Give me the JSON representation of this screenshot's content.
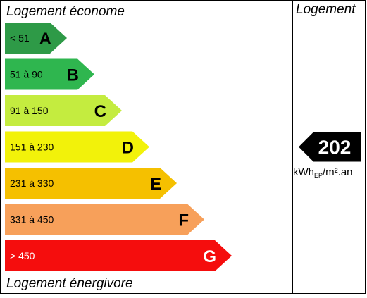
{
  "header": {
    "top_label": "Logement économe",
    "bottom_label": "Logement énergivore",
    "column_label": "Logement"
  },
  "classes": [
    {
      "letter": "A",
      "range": "< 51",
      "color": "#2e9a47",
      "range_color": "#000000",
      "letter_color": "#000000"
    },
    {
      "letter": "B",
      "range": "51 à 90",
      "color": "#2fb64f",
      "range_color": "#000000",
      "letter_color": "#000000"
    },
    {
      "letter": "C",
      "range": "91 à 150",
      "color": "#c4ec3f",
      "range_color": "#000000",
      "letter_color": "#000000"
    },
    {
      "letter": "D",
      "range": "151 à 230",
      "color": "#f2f20a",
      "range_color": "#000000",
      "letter_color": "#000000"
    },
    {
      "letter": "E",
      "range": "231 à 330",
      "color": "#f5c000",
      "range_color": "#000000",
      "letter_color": "#000000"
    },
    {
      "letter": "F",
      "range": "331 à 450",
      "color": "#f7a05a",
      "range_color": "#000000",
      "letter_color": "#000000"
    },
    {
      "letter": "G",
      "range": "> 450",
      "color": "#f50d0d",
      "range_color": "#ffffff",
      "letter_color": "#ffffff"
    }
  ],
  "result": {
    "value": "202",
    "class": "D",
    "unit_main": "kWh",
    "unit_sub": "EP",
    "unit_tail": "/m².an"
  }
}
